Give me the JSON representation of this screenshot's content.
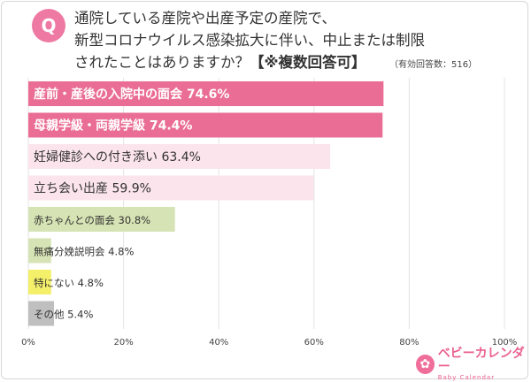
{
  "question": {
    "badge": "Q",
    "line1": "通院している産院や出産予定の産院で、",
    "line2": "新型コロナウイルス感染拡大に伴い、中止または制限",
    "line3": "されたことはありますか？",
    "emphasis": "【※複数回答可】",
    "count": "（有効回答数：516）"
  },
  "logo": {
    "mark": "✿",
    "name": "ベビーカレンダー",
    "sub": "Baby Calendar"
  },
  "chart_data": {
    "type": "bar",
    "orientation": "horizontal",
    "categories": [
      "産前・産後の入院中の面会",
      "母親学級・両親学級",
      "妊婦健診への付き添い",
      "立ち会い出産",
      "赤ちゃんとの面会",
      "無痛分娩説明会",
      "特にない",
      "その他"
    ],
    "values": [
      74.6,
      74.4,
      63.4,
      59.9,
      30.8,
      4.8,
      4.8,
      5.4
    ],
    "value_labels": [
      "74.6%",
      "74.4%",
      "63.4%",
      "59.9%",
      "30.8%",
      "4.8%",
      "4.8%",
      "5.4%"
    ],
    "colors": [
      "#ea6d95",
      "#ea6d95",
      "#fbe4ec",
      "#fbe4ec",
      "#d6e3b4",
      "#d6e3b4",
      "#f4f06a",
      "#bfbfbf"
    ],
    "xlim": [
      0,
      100
    ],
    "ticks": [
      0,
      20,
      40,
      60,
      80,
      100
    ],
    "tick_labels": [
      "0%",
      "20%",
      "40%",
      "60%",
      "80%",
      "100%"
    ],
    "grid": true,
    "xlabel": "",
    "ylabel": ""
  }
}
